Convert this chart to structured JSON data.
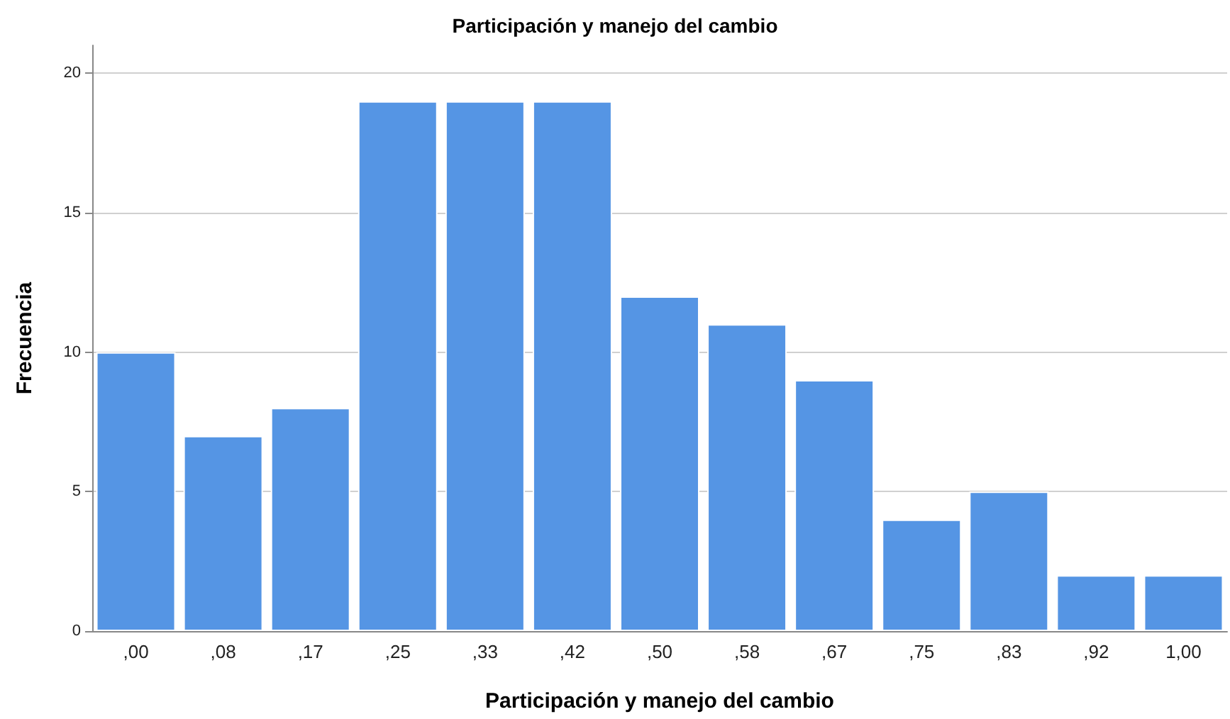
{
  "chart_data": {
    "type": "bar",
    "title": "Participación y manejo del cambio",
    "xlabel": "Participación y manejo del cambio",
    "ylabel": "Frecuencia",
    "categories": [
      ",00",
      ",08",
      ",17",
      ",25",
      ",33",
      ",42",
      ",50",
      ",58",
      ",67",
      ",75",
      ",83",
      ",92",
      "1,00"
    ],
    "values": [
      10,
      7,
      8,
      19,
      19,
      19,
      12,
      11,
      9,
      4,
      5,
      2,
      2
    ],
    "color": "#5595e4",
    "ylim": [
      0,
      21
    ],
    "yticks": [
      0,
      5,
      10,
      15,
      20
    ],
    "grid": "y"
  }
}
